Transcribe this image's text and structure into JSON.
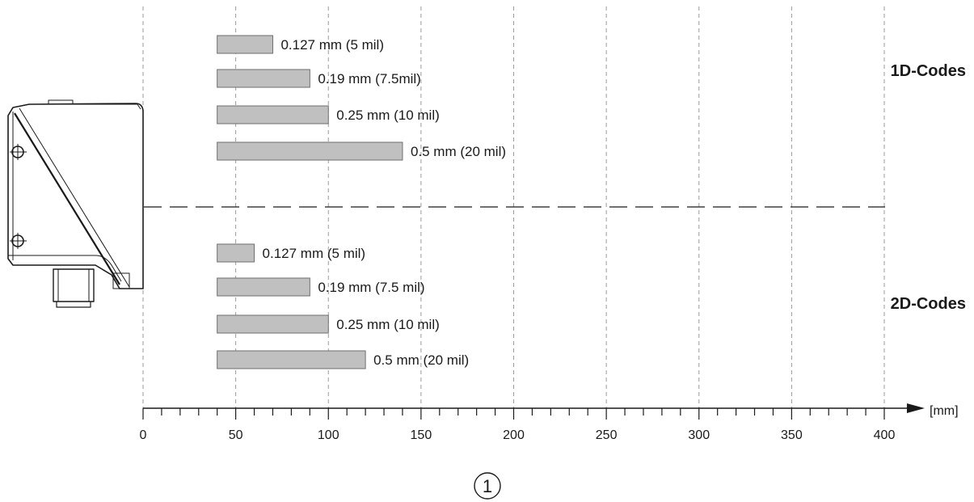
{
  "chart_data": {
    "type": "bar",
    "orientation": "horizontal-range",
    "x_unit": "[mm]",
    "xlim": [
      0,
      400
    ],
    "x_ticks": [
      0,
      50,
      100,
      150,
      200,
      250,
      300,
      350,
      400
    ],
    "x_tick_labels": [
      "0",
      "50",
      "100",
      "150",
      "200",
      "250",
      "300",
      "350",
      "400"
    ],
    "x_minor_step": 10,
    "grid": "vertical dashed at major ticks",
    "groups": [
      {
        "name": "1D-Codes",
        "bars": [
          {
            "label": "0.127 mm (5 mil)",
            "start": 40,
            "end": 70
          },
          {
            "label": "0.19 mm (7.5mil)",
            "start": 40,
            "end": 90
          },
          {
            "label": "0.25 mm (10 mil)",
            "start": 40,
            "end": 100
          },
          {
            "label": "0.5 mm (20 mil)",
            "start": 40,
            "end": 140
          }
        ]
      },
      {
        "name": "2D-Codes",
        "bars": [
          {
            "label": "0.127 mm (5 mil)",
            "start": 40,
            "end": 60
          },
          {
            "label": "0.19 mm (7.5 mil)",
            "start": 40,
            "end": 90
          },
          {
            "label": "0.25 mm (10 mil)",
            "start": 40,
            "end": 100
          },
          {
            "label": "0.5 mm (20 mil)",
            "start": 40,
            "end": 120
          }
        ]
      }
    ],
    "figure_number": "1"
  },
  "colors": {
    "bar_fill": "#c0c0c0",
    "bar_stroke": "#6e6e6e",
    "grid": "#9a9a9a",
    "axis": "#1a1a1a",
    "device": "#1a1a1a"
  }
}
